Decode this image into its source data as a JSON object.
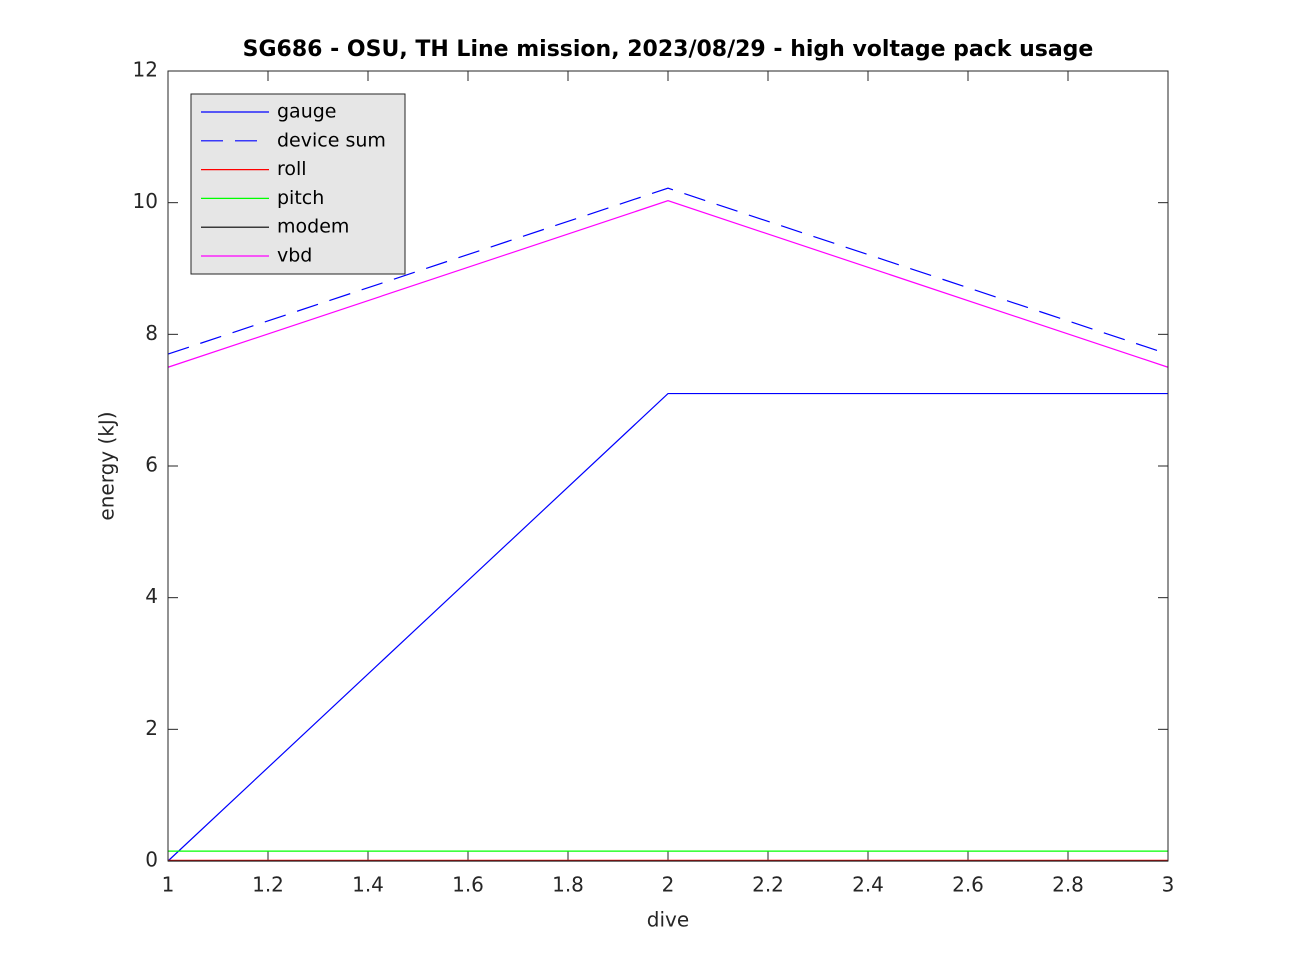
{
  "chart_data": {
    "type": "line",
    "title": "SG686 - OSU, TH Line mission, 2023/08/29 - high voltage pack usage",
    "x_label": "dive",
    "y_label": "energy (kJ)",
    "x": [
      1,
      2,
      3
    ],
    "series": [
      {
        "name": "gauge",
        "color": "#0000ff",
        "linestyle": "solid",
        "values": [
          0,
          7.1,
          7.1
        ]
      },
      {
        "name": "device sum",
        "color": "#0000ff",
        "linestyle": "dashed",
        "values": [
          7.7,
          10.22,
          7.7
        ]
      },
      {
        "name": "roll",
        "color": "#ff0000",
        "linestyle": "solid",
        "values": [
          0.01,
          0.01,
          0.01
        ]
      },
      {
        "name": "pitch",
        "color": "#00ff00",
        "linestyle": "solid",
        "values": [
          0.15,
          0.15,
          0.15
        ]
      },
      {
        "name": "modem",
        "color": "#000000",
        "linestyle": "solid",
        "values": [
          0,
          0,
          0
        ]
      },
      {
        "name": "vbd",
        "color": "#ff00ff",
        "linestyle": "solid",
        "values": [
          7.5,
          10.03,
          7.5
        ]
      }
    ],
    "xlim": [
      1,
      3
    ],
    "xticks": [
      1,
      1.2,
      1.4,
      1.6,
      1.8,
      2,
      2.2,
      2.4,
      2.6,
      2.8,
      3
    ],
    "ylim": [
      0,
      12
    ],
    "yticks": [
      0,
      2,
      4,
      6,
      8,
      10,
      12
    ],
    "grid": false,
    "legend": "upper left"
  }
}
